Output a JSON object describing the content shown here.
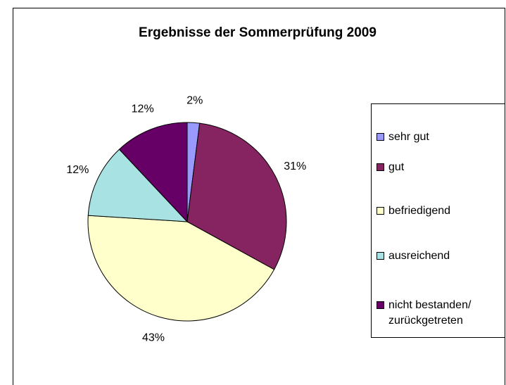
{
  "chart_data": {
    "type": "pie",
    "title": "Ergebnisse der Sommerprüfung 2009",
    "categories": [
      "sehr gut",
      "gut",
      "befriedigend",
      "ausreichend",
      "nicht bestanden/ zurückgetreten"
    ],
    "values": [
      2,
      31,
      43,
      12,
      12
    ],
    "value_labels": [
      "2%",
      "31%",
      "43%",
      "12%",
      "12%"
    ],
    "colors": [
      "#9999ff",
      "#862462",
      "#ffffcc",
      "#a8e2e2",
      "#660066"
    ],
    "legend": "right"
  }
}
